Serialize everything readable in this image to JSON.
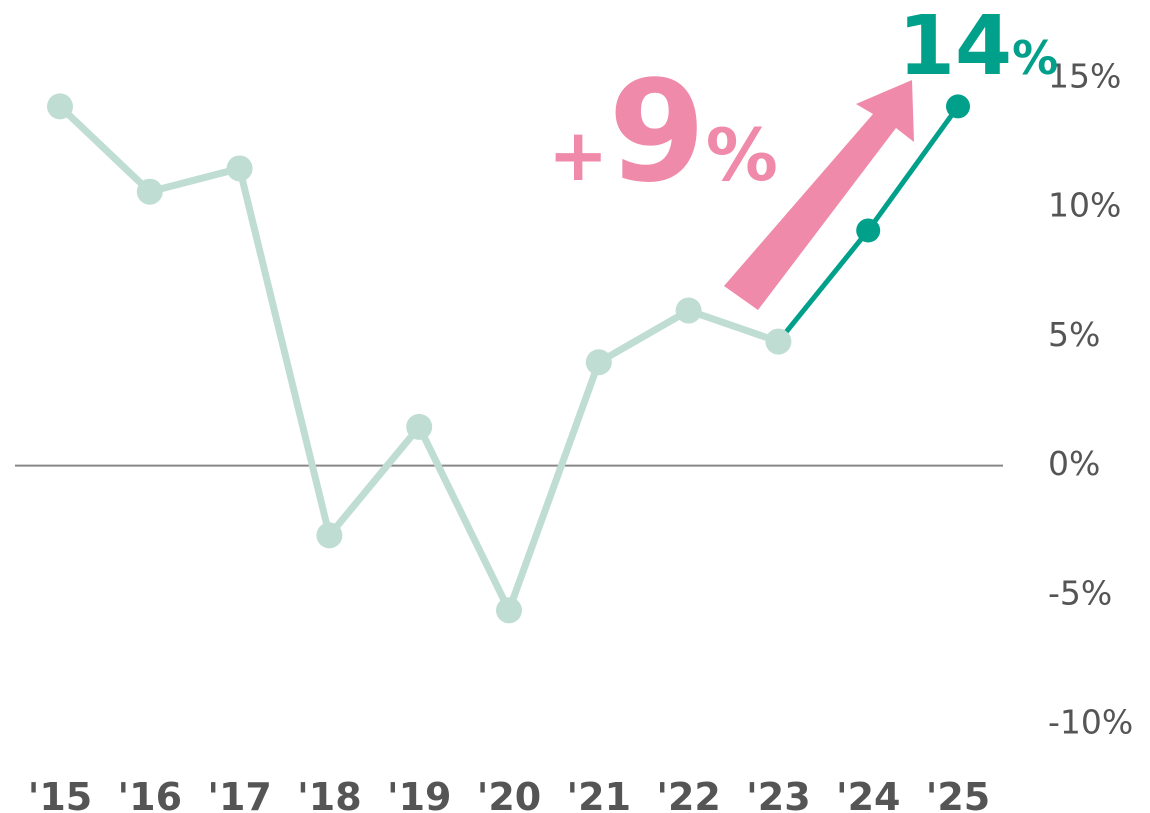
{
  "chart_data": {
    "type": "line",
    "categories": [
      "'15",
      "'16",
      "'17",
      "'18",
      "'19",
      "'20",
      "'21",
      "'22",
      "'23",
      "'24",
      "'25"
    ],
    "series": [
      {
        "color": "#bfddd3",
        "values": [
          13.9,
          10.6,
          11.5,
          -2.7,
          1.5,
          -5.6,
          4.0,
          6.0,
          4.8,
          null,
          null
        ]
      },
      {
        "color": "#00a08a",
        "values": [
          null,
          null,
          null,
          null,
          null,
          null,
          null,
          null,
          4.8,
          9.1,
          13.9
        ]
      }
    ],
    "ylim": [
      -10,
      15
    ],
    "yticks": [
      {
        "value": 15,
        "label": "15%"
      },
      {
        "value": 10,
        "label": "10%"
      },
      {
        "value": 5,
        "label": "5%"
      },
      {
        "value": 0,
        "label": "0%"
      },
      {
        "value": -5,
        "label": "-5%"
      },
      {
        "value": -10,
        "label": "-10%"
      }
    ],
    "zero_line": true,
    "annotations": {
      "change": {
        "sign": "+",
        "number": "9",
        "unit": "%",
        "color": "#f08aab"
      },
      "latest": {
        "number": "14",
        "unit": "%",
        "color": "#00a08a"
      }
    }
  }
}
